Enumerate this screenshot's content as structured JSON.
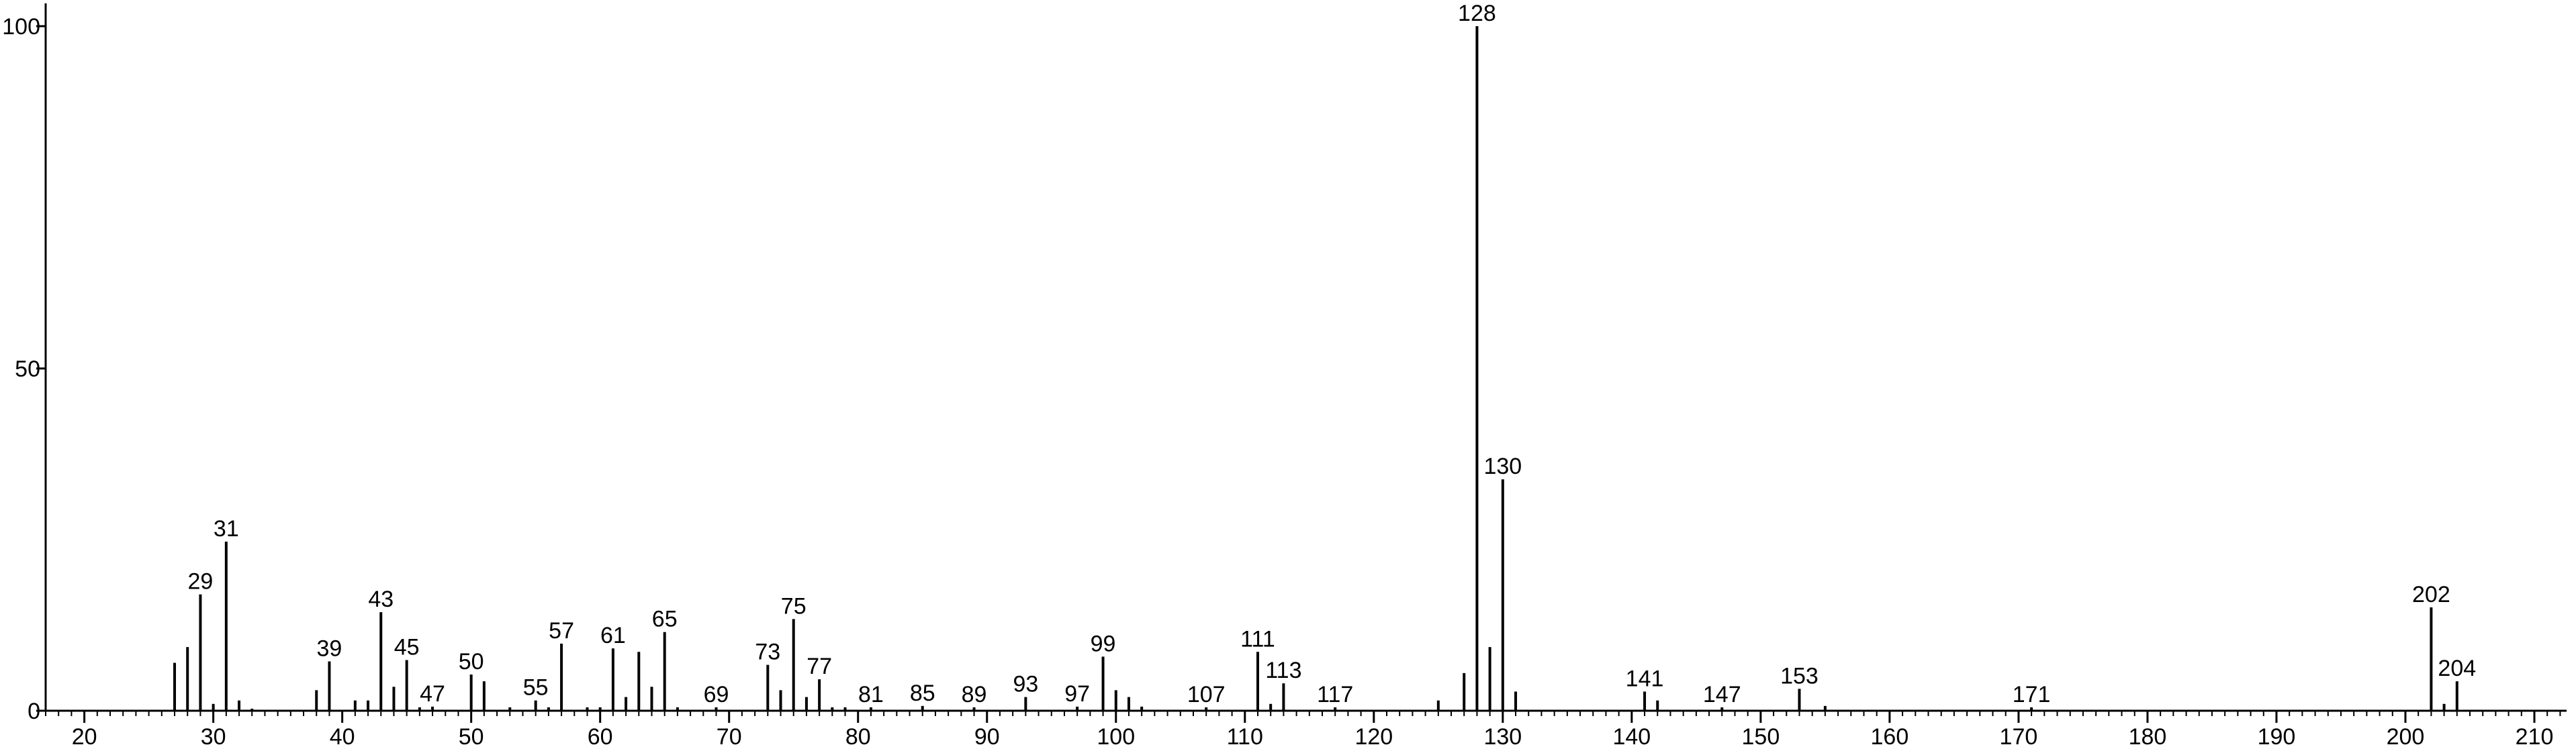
{
  "chart_data": {
    "type": "stem",
    "color": "#000000",
    "x": [
      27,
      28,
      29,
      30,
      31,
      32,
      33,
      38,
      39,
      41,
      42,
      43,
      44,
      45,
      46,
      47,
      50,
      51,
      53,
      55,
      56,
      57,
      59,
      60,
      61,
      62,
      63,
      64,
      65,
      66,
      69,
      73,
      74,
      75,
      76,
      77,
      78,
      79,
      81,
      85,
      89,
      93,
      97,
      99,
      100,
      101,
      102,
      107,
      111,
      112,
      113,
      117,
      125,
      127,
      128,
      129,
      130,
      131,
      141,
      142,
      147,
      153,
      155,
      171,
      202,
      203,
      204
    ],
    "values": [
      7,
      9.3,
      17,
      1,
      24.7,
      1.5,
      0.3,
      3,
      7.2,
      1.5,
      1.5,
      14.4,
      3.5,
      7.4,
      0.5,
      0.6,
      5.3,
      4.3,
      0.5,
      1.5,
      0.5,
      9.8,
      0.5,
      0.5,
      9.1,
      2,
      8.6,
      3.5,
      11.5,
      0.5,
      0.5,
      6.7,
      3,
      13.4,
      2,
      4.6,
      0.5,
      0.5,
      0.5,
      0.7,
      0.5,
      2,
      0.6,
      7.9,
      3,
      2,
      0.6,
      0.5,
      8.6,
      1,
      4,
      0.5,
      1.5,
      5.5,
      100,
      9.3,
      33.8,
      2.8,
      2.8,
      1.5,
      0.5,
      3.2,
      0.7,
      0.5,
      15.1,
      1,
      4.3
    ],
    "labels": [
      null,
      null,
      "29",
      null,
      "31",
      null,
      null,
      null,
      "39",
      null,
      null,
      "43",
      null,
      "45",
      null,
      "47",
      "50",
      null,
      null,
      "55",
      null,
      "57",
      null,
      null,
      "61",
      null,
      null,
      null,
      "65",
      null,
      "69",
      "73",
      null,
      "75",
      null,
      "77",
      null,
      null,
      "81",
      "85",
      "89",
      "93",
      "97",
      "99",
      null,
      null,
      null,
      "107",
      "111",
      null,
      "113",
      "117",
      null,
      null,
      "128",
      null,
      "130",
      null,
      "141",
      null,
      "147",
      "153",
      null,
      "171",
      "202",
      null,
      "204"
    ],
    "xlim": [
      17,
      212.5
    ],
    "ylim": [
      0,
      100
    ],
    "xticks": [
      20,
      30,
      40,
      50,
      60,
      70,
      80,
      90,
      100,
      110,
      120,
      130,
      140,
      150,
      160,
      170,
      180,
      190,
      200,
      210
    ],
    "x_minor_interval": 1,
    "yticks": [
      0,
      50,
      100
    ]
  }
}
